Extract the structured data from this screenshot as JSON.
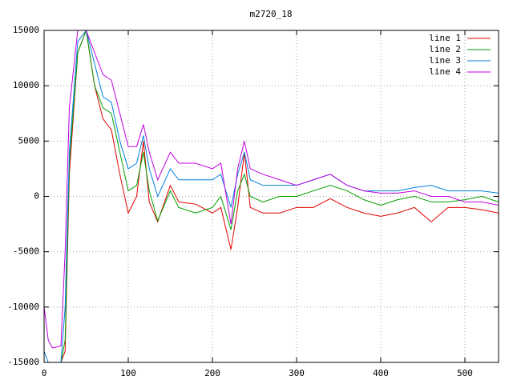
{
  "chart_data": {
    "type": "line",
    "title": "m2720_18",
    "x": [
      0,
      5,
      10,
      20,
      25,
      30,
      40,
      50,
      60,
      70,
      80,
      90,
      100,
      110,
      118,
      125,
      135,
      150,
      160,
      180,
      200,
      210,
      222,
      230,
      238,
      245,
      260,
      280,
      300,
      320,
      340,
      360,
      380,
      400,
      420,
      440,
      460,
      480,
      500,
      520,
      540
    ],
    "series": [
      {
        "name": "line 1",
        "color": "#e00000",
        "values": [
          -15000,
          -15000,
          -15000,
          -15000,
          -14000,
          2000,
          13000,
          15000,
          10000,
          7000,
          6000,
          2000,
          -1500,
          0,
          5000,
          -500,
          -2300,
          1000,
          -500,
          -700,
          -1500,
          -1000,
          -4800,
          -1000,
          4000,
          -1000,
          -1500,
          -1500,
          -1000,
          -1000,
          -200,
          -1000,
          -1500,
          -1800,
          -1500,
          -1000,
          -2300,
          -1000,
          -1000,
          -1200,
          -1500
        ]
      },
      {
        "name": "line 2",
        "color": "#00a000",
        "values": [
          -15000,
          -15000,
          -15000,
          -15000,
          -13000,
          3000,
          13000,
          15000,
          10000,
          8000,
          7500,
          4000,
          500,
          1000,
          4000,
          500,
          -2200,
          500,
          -1000,
          -1500,
          -1000,
          0,
          -3000,
          500,
          2000,
          0,
          -500,
          0,
          0,
          500,
          1000,
          500,
          -300,
          -800,
          -300,
          0,
          -500,
          -500,
          -300,
          0,
          -500
        ]
      },
      {
        "name": "line 3",
        "color": "#0080e0",
        "values": [
          -14000,
          -15000,
          -15000,
          -15000,
          -10000,
          4000,
          14000,
          15000,
          12000,
          9000,
          8500,
          5000,
          2500,
          3000,
          5500,
          2500,
          0,
          2500,
          1500,
          1500,
          1500,
          2000,
          -1000,
          2000,
          4000,
          1500,
          1000,
          1000,
          1000,
          1500,
          2000,
          1000,
          500,
          500,
          500,
          800,
          1000,
          500,
          500,
          500,
          300
        ]
      },
      {
        "name": "line 4",
        "color": "#c000e0",
        "values": [
          -10000,
          -13000,
          -13700,
          -13500,
          -5000,
          8000,
          15000,
          15000,
          13000,
          11000,
          10500,
          7500,
          4500,
          4500,
          6500,
          4000,
          1500,
          4000,
          3000,
          3000,
          2500,
          3000,
          -2500,
          2500,
          5000,
          2500,
          2000,
          1500,
          1000,
          1500,
          2000,
          1000,
          500,
          300,
          300,
          500,
          0,
          0,
          -500,
          -500,
          -800
        ]
      }
    ],
    "xlim": [
      0,
      540
    ],
    "ylim": [
      -15000,
      15000
    ],
    "xticks": [
      0,
      100,
      200,
      300,
      400,
      500
    ],
    "yticks": [
      -15000,
      -10000,
      -5000,
      0,
      5000,
      10000,
      15000
    ],
    "grid": true,
    "legend": "top right"
  }
}
